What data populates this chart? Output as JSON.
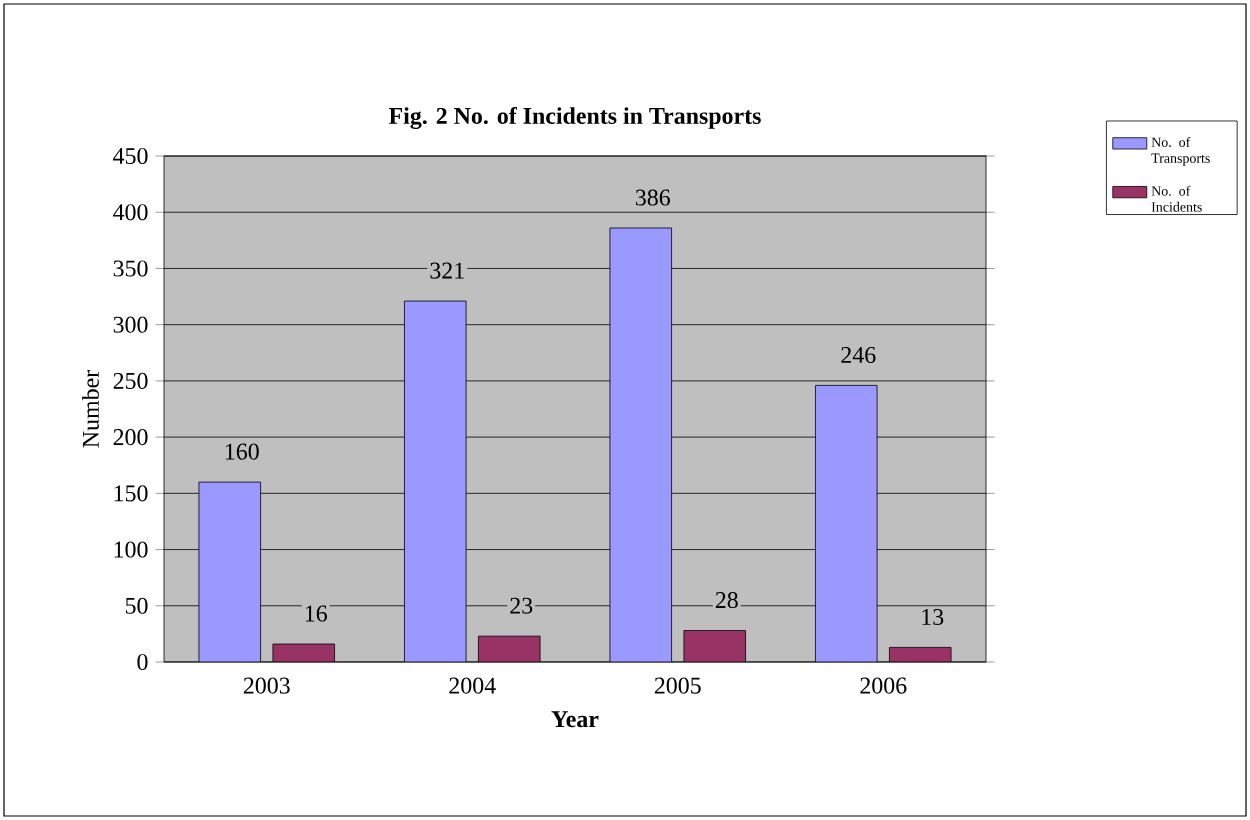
{
  "chart_data": {
    "type": "bar",
    "title": "Fig. 2 No. of Incidents in Transports",
    "xlabel": "Year",
    "ylabel": "Number",
    "categories": [
      "2003",
      "2004",
      "2005",
      "2006"
    ],
    "series": [
      {
        "name": "No. of Transports",
        "color": "#9999ff",
        "values": [
          160,
          321,
          386,
          246
        ]
      },
      {
        "name": "No. of Incidents",
        "color": "#993366",
        "values": [
          16,
          23,
          28,
          13
        ]
      }
    ],
    "ylim": [
      0,
      450
    ],
    "yticks": [
      0,
      50,
      100,
      150,
      200,
      250,
      300,
      350,
      400,
      450
    ],
    "grid": "y",
    "legend": "right",
    "data_labels": true
  }
}
